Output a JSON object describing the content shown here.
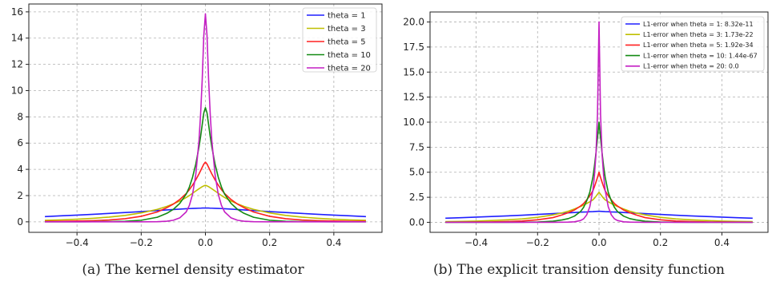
{
  "captions": [
    "(a) The kernel density estimator",
    "(b) The explicit transition density function"
  ],
  "chart_data": [
    {
      "type": "line",
      "title": "",
      "xlabel": "",
      "ylabel": "",
      "xlim": [
        -0.55,
        0.55
      ],
      "ylim": [
        -0.8,
        16.6
      ],
      "grid": true,
      "legend_position": "top-right",
      "x_ticks": [
        -0.4,
        -0.2,
        0.0,
        0.2,
        0.4
      ],
      "x_tick_labels": [
        "−0.4",
        "−0.2",
        "0.0",
        "0.2",
        "0.4"
      ],
      "y_ticks": [
        0,
        2,
        4,
        6,
        8,
        10,
        12,
        14,
        16
      ],
      "y_tick_labels": [
        "0",
        "2",
        "4",
        "6",
        "8",
        "10",
        "12",
        "14",
        "16"
      ],
      "x": [
        -0.5,
        -0.45,
        -0.4,
        -0.35,
        -0.3,
        -0.25,
        -0.2,
        -0.15,
        -0.12,
        -0.1,
        -0.08,
        -0.06,
        -0.05,
        -0.04,
        -0.03,
        -0.02,
        -0.015,
        -0.01,
        -0.005,
        0.0,
        0.005,
        0.01,
        0.015,
        0.02,
        0.03,
        0.04,
        0.05,
        0.06,
        0.08,
        0.1,
        0.12,
        0.15,
        0.2,
        0.25,
        0.3,
        0.35,
        0.4,
        0.45,
        0.5
      ],
      "series": [
        {
          "name": "theta = 1",
          "color": "#1f1fff",
          "values": [
            0.4,
            0.46,
            0.51,
            0.57,
            0.64,
            0.71,
            0.78,
            0.86,
            0.91,
            0.94,
            0.97,
            1.0,
            1.01,
            1.02,
            1.03,
            1.04,
            1.04,
            1.05,
            1.05,
            1.05,
            1.05,
            1.05,
            1.04,
            1.04,
            1.03,
            1.02,
            1.01,
            1.0,
            0.97,
            0.94,
            0.91,
            0.86,
            0.78,
            0.71,
            0.64,
            0.57,
            0.51,
            0.46,
            0.4
          ]
        },
        {
          "name": "theta = 3",
          "color": "#bfbf00",
          "values": [
            0.12,
            0.15,
            0.2,
            0.27,
            0.36,
            0.49,
            0.68,
            0.95,
            1.18,
            1.37,
            1.58,
            1.85,
            2.0,
            2.18,
            2.35,
            2.52,
            2.6,
            2.68,
            2.74,
            2.78,
            2.74,
            2.68,
            2.6,
            2.52,
            2.35,
            2.18,
            2.0,
            1.85,
            1.58,
            1.37,
            1.18,
            0.95,
            0.68,
            0.49,
            0.36,
            0.27,
            0.2,
            0.15,
            0.12
          ]
        },
        {
          "name": "theta = 5",
          "color": "#ff2020",
          "values": [
            0.03,
            0.04,
            0.06,
            0.09,
            0.14,
            0.24,
            0.42,
            0.75,
            1.08,
            1.35,
            1.7,
            2.15,
            2.45,
            2.8,
            3.2,
            3.65,
            3.9,
            4.15,
            4.4,
            4.55,
            4.4,
            4.15,
            3.9,
            3.65,
            3.2,
            2.8,
            2.45,
            2.15,
            1.7,
            1.35,
            1.08,
            0.75,
            0.42,
            0.24,
            0.14,
            0.09,
            0.06,
            0.04,
            0.03
          ]
        },
        {
          "name": "theta = 10",
          "color": "#138a13",
          "values": [
            0.0,
            0.0,
            0.0,
            0.01,
            0.02,
            0.04,
            0.12,
            0.35,
            0.65,
            0.95,
            1.4,
            2.1,
            2.65,
            3.4,
            4.4,
            5.7,
            6.5,
            7.4,
            8.3,
            8.7,
            8.3,
            7.4,
            6.5,
            5.7,
            4.4,
            3.4,
            2.65,
            2.1,
            1.4,
            0.95,
            0.65,
            0.35,
            0.12,
            0.04,
            0.02,
            0.01,
            0.0,
            0.0,
            0.0
          ]
        },
        {
          "name": "theta = 20",
          "color": "#c41fc4",
          "values": [
            0.0,
            0.0,
            0.0,
            0.0,
            0.0,
            0.0,
            0.0,
            0.01,
            0.05,
            0.12,
            0.3,
            0.75,
            1.25,
            2.1,
            3.6,
            6.2,
            8.2,
            10.8,
            14.2,
            15.85,
            14.2,
            10.8,
            8.2,
            6.2,
            3.6,
            2.1,
            1.25,
            0.75,
            0.3,
            0.12,
            0.05,
            0.01,
            0.0,
            0.0,
            0.0,
            0.0,
            0.0,
            0.0,
            0.0
          ]
        }
      ]
    },
    {
      "type": "line",
      "title": "",
      "xlabel": "",
      "ylabel": "",
      "xlim": [
        -0.55,
        0.55
      ],
      "ylim": [
        -1.0,
        21.0
      ],
      "grid": true,
      "legend_position": "top-right",
      "x_ticks": [
        -0.4,
        -0.2,
        0.0,
        0.2,
        0.4
      ],
      "x_tick_labels": [
        "−0.4",
        "−0.2",
        "0.0",
        "0.2",
        "0.4"
      ],
      "y_ticks": [
        0,
        2.5,
        5,
        7.5,
        10,
        12.5,
        15,
        17.5,
        20
      ],
      "y_tick_labels": [
        "0.0",
        "2.5",
        "5.0",
        "7.5",
        "10.0",
        "12.5",
        "15.0",
        "17.5",
        "20.0"
      ],
      "x": [
        -0.5,
        -0.45,
        -0.4,
        -0.35,
        -0.3,
        -0.25,
        -0.2,
        -0.15,
        -0.12,
        -0.1,
        -0.08,
        -0.06,
        -0.05,
        -0.04,
        -0.03,
        -0.02,
        -0.015,
        -0.01,
        -0.005,
        0.0,
        0.005,
        0.01,
        0.015,
        0.02,
        0.03,
        0.04,
        0.05,
        0.06,
        0.08,
        0.1,
        0.12,
        0.15,
        0.2,
        0.25,
        0.3,
        0.35,
        0.4,
        0.45,
        0.5
      ],
      "series": [
        {
          "name": "L1-error when theta = 1: 8.32e-11",
          "color": "#1f1fff",
          "values": [
            0.41,
            0.46,
            0.52,
            0.58,
            0.64,
            0.71,
            0.79,
            0.87,
            0.92,
            0.95,
            0.98,
            1.02,
            1.03,
            1.04,
            1.06,
            1.07,
            1.08,
            1.09,
            1.1,
            1.1,
            1.1,
            1.09,
            1.08,
            1.07,
            1.06,
            1.04,
            1.03,
            1.02,
            0.98,
            0.95,
            0.92,
            0.87,
            0.79,
            0.71,
            0.64,
            0.58,
            0.52,
            0.46,
            0.41
          ]
        },
        {
          "name": "L1-error when theta = 3: 1.73e-22",
          "color": "#bfbf00",
          "values": [
            0.07,
            0.09,
            0.12,
            0.18,
            0.25,
            0.34,
            0.5,
            0.74,
            0.94,
            1.11,
            1.33,
            1.58,
            1.72,
            1.88,
            2.05,
            2.24,
            2.4,
            2.59,
            2.8,
            3.0,
            2.8,
            2.59,
            2.4,
            2.24,
            2.05,
            1.88,
            1.72,
            1.58,
            1.33,
            1.11,
            0.94,
            0.74,
            0.5,
            0.34,
            0.25,
            0.18,
            0.12,
            0.09,
            0.07
          ]
        },
        {
          "name": "L1-error when theta = 5: 1.92e-34",
          "color": "#ff2020",
          "values": [
            0.01,
            0.02,
            0.03,
            0.04,
            0.08,
            0.13,
            0.25,
            0.47,
            0.74,
            0.96,
            1.23,
            1.63,
            1.88,
            2.25,
            2.65,
            3.15,
            3.55,
            4.0,
            4.48,
            5.0,
            4.48,
            4.0,
            3.55,
            3.15,
            2.65,
            2.25,
            1.88,
            1.63,
            1.23,
            0.96,
            0.74,
            0.47,
            0.25,
            0.13,
            0.08,
            0.04,
            0.03,
            0.02,
            0.01
          ]
        },
        {
          "name": "L1-error when theta = 10: 1.44e-67",
          "color": "#138a13",
          "values": [
            0.0,
            0.0,
            0.0,
            0.0,
            0.0,
            0.01,
            0.03,
            0.11,
            0.24,
            0.37,
            0.62,
            1.08,
            1.5,
            2.15,
            3.0,
            4.5,
            5.6,
            6.9,
            8.4,
            10.0,
            8.4,
            6.9,
            5.6,
            4.5,
            3.0,
            2.15,
            1.5,
            1.08,
            0.62,
            0.37,
            0.24,
            0.11,
            0.03,
            0.01,
            0.0,
            0.0,
            0.0,
            0.0,
            0.0
          ]
        },
        {
          "name": "L1-error when theta = 20: 0.0",
          "color": "#c41fc4",
          "values": [
            0.0,
            0.0,
            0.0,
            0.0,
            0.0,
            0.0,
            0.0,
            0.0,
            0.01,
            0.02,
            0.05,
            0.18,
            0.35,
            0.75,
            1.55,
            3.2,
            4.65,
            6.75,
            10.75,
            20.0,
            10.75,
            6.75,
            4.65,
            3.2,
            1.55,
            0.75,
            0.35,
            0.18,
            0.05,
            0.02,
            0.01,
            0.0,
            0.0,
            0.0,
            0.0,
            0.0,
            0.0,
            0.0,
            0.0
          ]
        }
      ]
    }
  ]
}
